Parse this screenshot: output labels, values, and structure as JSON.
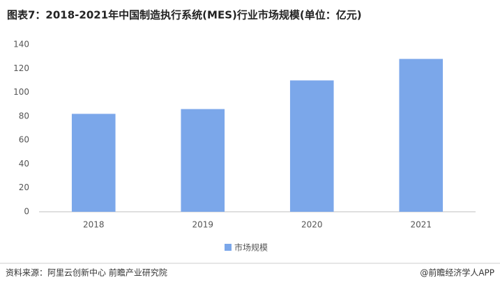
{
  "chart_data": {
    "type": "bar",
    "title": "图表7：2018-2021年中国制造执行系统(MES)行业市场规模(单位：亿元)",
    "categories": [
      "2018",
      "2019",
      "2020",
      "2021"
    ],
    "series": [
      {
        "name": "市场规模",
        "color": "#7ba7ea",
        "values": [
          82,
          86,
          110,
          128
        ]
      }
    ],
    "ylim": [
      0,
      140
    ],
    "yticks": [
      0,
      20,
      40,
      60,
      80,
      100,
      120,
      140
    ],
    "grid": false,
    "source": "资料来源：阿里云创新中心 前瞻产业研究院",
    "credit": "@前瞻经济学人APP"
  }
}
